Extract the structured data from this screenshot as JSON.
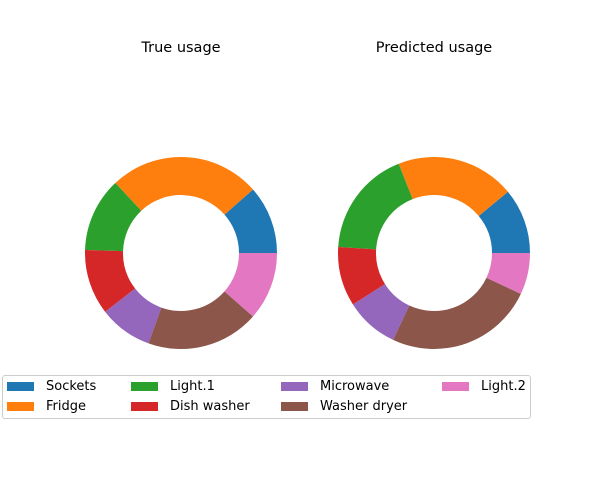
{
  "chart_data": [
    {
      "type": "donut",
      "title": "True usage",
      "categories": [
        "Sockets",
        "Fridge",
        "Light.1",
        "Dish washer",
        "Microwave",
        "Washer dryer",
        "Light.2"
      ],
      "values": [
        11.5,
        25.5,
        12.5,
        11.0,
        9.0,
        19.0,
        11.5
      ]
    },
    {
      "type": "donut",
      "title": "Predicted usage",
      "categories": [
        "Sockets",
        "Fridge",
        "Light.1",
        "Dish washer",
        "Microwave",
        "Washer dryer",
        "Light.2"
      ],
      "values": [
        11.0,
        20.0,
        18.0,
        10.0,
        9.0,
        25.0,
        7.0
      ]
    }
  ],
  "colors": {
    "Sockets": "#1f77b4",
    "Fridge": "#ff7f0e",
    "Light.1": "#2ca02c",
    "Dish washer": "#d62728",
    "Microwave": "#9467bd",
    "Washer dryer": "#8c564b",
    "Light.2": "#e377c2"
  },
  "legend": {
    "placement": "bottom",
    "entries": [
      "Sockets",
      "Fridge",
      "Light.1",
      "Dish washer",
      "Microwave",
      "Washer dryer",
      "Light.2"
    ]
  }
}
